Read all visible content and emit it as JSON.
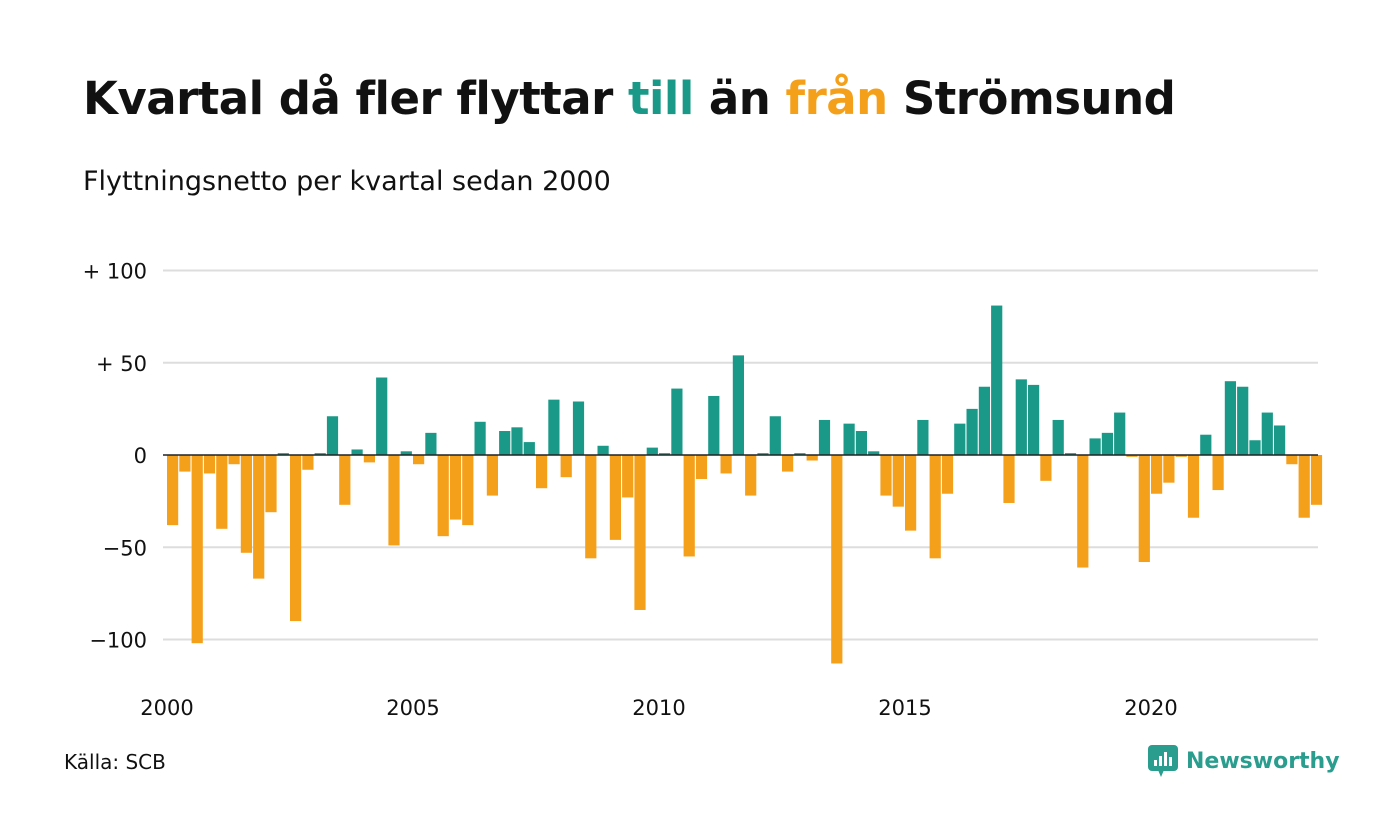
{
  "header": {
    "title_part1": "Kvartal då fler flyttar ",
    "title_till": "till",
    "title_part2": " än ",
    "title_fran": "från",
    "title_part3": " Strömsund",
    "subtitle": "Flyttningsnetto per kvartal sedan 2000"
  },
  "footer": {
    "source": "Källa: SCB",
    "brand": "Newsworthy"
  },
  "colors": {
    "positive": "#1b9988",
    "negative": "#f5a01a",
    "grid": "#dddddd",
    "brand": "#2a9d8f"
  },
  "chart_data": {
    "type": "bar",
    "title": "Kvartal då fler flyttar till än från Strömsund",
    "subtitle": "Flyttningsnetto per kvartal sedan 2000",
    "x_start_year": 2000,
    "periods_per_year": 4,
    "x_ticks": [
      2000,
      2005,
      2010,
      2015,
      2020
    ],
    "y_ticks": [
      {
        "value": 100,
        "label": "+ 100"
      },
      {
        "value": 50,
        "label": "+  50"
      },
      {
        "value": 0,
        "label": "0"
      },
      {
        "value": -50,
        "label": "−50"
      },
      {
        "value": -100,
        "label": "−100"
      }
    ],
    "ylim": [
      -115,
      100
    ],
    "grid": true,
    "values": [
      -38,
      -9,
      -102,
      -10,
      -40,
      -5,
      -53,
      -67,
      -31,
      1,
      -90,
      -8,
      1,
      21,
      -27,
      3,
      -4,
      42,
      -49,
      2,
      -5,
      12,
      -44,
      -35,
      -38,
      18,
      -22,
      13,
      15,
      7,
      -18,
      30,
      -12,
      29,
      -56,
      5,
      -46,
      -23,
      -84,
      4,
      1,
      36,
      -55,
      -13,
      32,
      -10,
      54,
      -22,
      1,
      21,
      -9,
      1,
      -3,
      19,
      -113,
      17,
      13,
      2,
      -22,
      -28,
      -41,
      19,
      -56,
      -21,
      17,
      25,
      37,
      81,
      -26,
      41,
      38,
      -14,
      19,
      1,
      -61,
      9,
      12,
      23,
      -1,
      -58,
      -21,
      -15,
      -1,
      -34,
      11,
      -19,
      40,
      37,
      8,
      23,
      16,
      -5,
      -34,
      -27
    ]
  }
}
